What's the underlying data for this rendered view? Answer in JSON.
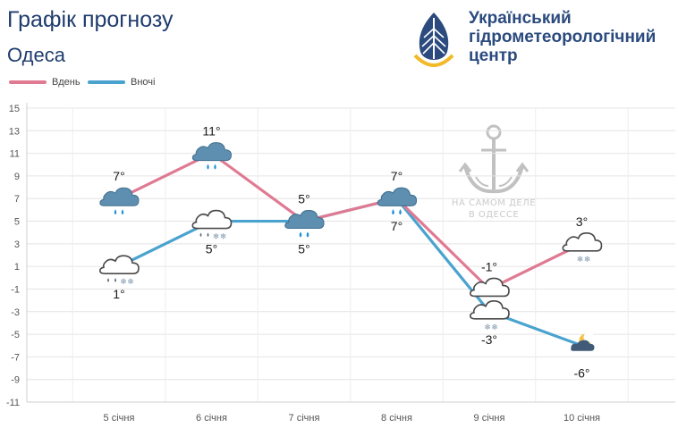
{
  "header": {
    "title": "Графік прогнозу",
    "city": "Одеса"
  },
  "brand": {
    "line1": "Український",
    "line2": "гідрометеорологічний",
    "line3": "центр"
  },
  "watermark": {
    "line1": "НА САМОМ ДЕЛЕ",
    "line2": "В ОДЕССЕ"
  },
  "colors": {
    "day": "#e07a93",
    "night": "#4aa3cf",
    "text": "#1f3c6e"
  },
  "chart_data": {
    "type": "line",
    "title": "Графік прогнозу",
    "categories": [
      "5 січня",
      "6 січня",
      "7 січня",
      "8 січня",
      "9 січня",
      "10 січня"
    ],
    "ylim": [
      -11,
      15
    ],
    "yticks": [
      -11,
      -9,
      -7,
      -5,
      -3,
      -1,
      1,
      3,
      5,
      7,
      9,
      11,
      13,
      15
    ],
    "grid": true,
    "legend_position": "top-left",
    "series": [
      {
        "name": "Вдень",
        "values": [
          7,
          11,
          5,
          7,
          -1,
          3
        ],
        "labels": [
          "7°",
          "11°",
          "5°",
          "7°",
          "-1°",
          "3°"
        ],
        "icons": [
          "rain-cloud-icon",
          "rain-cloud-icon",
          "rain-cloud-icon",
          "rain-cloud-icon",
          "cloud-icon",
          "snow-cloud-icon"
        ]
      },
      {
        "name": "Вночі",
        "values": [
          1,
          5,
          5,
          7,
          -3,
          -6
        ],
        "labels": [
          "1°",
          "5°",
          "5°",
          "7°",
          "-3°",
          "-6°"
        ],
        "icons": [
          "sleet-cloud-icon",
          "sleet-cloud-icon",
          "rain-cloud-icon",
          "rain-cloud-icon",
          "snow-cloud-icon",
          "moon-cloud-icon"
        ]
      }
    ]
  }
}
